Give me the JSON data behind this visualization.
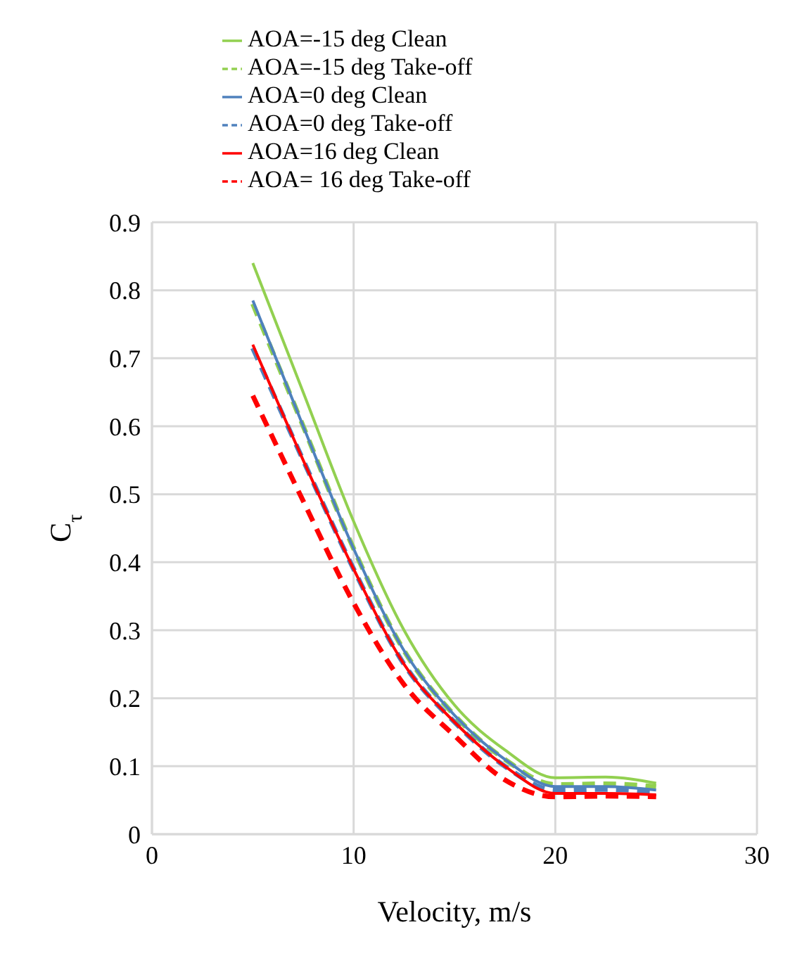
{
  "chart_data": {
    "type": "line",
    "xlabel": "Velocity, m/s",
    "ylabel": "C$_{τ}$",
    "x": [
      5,
      7.5,
      10,
      12.5,
      15,
      17.5,
      20,
      22.5,
      25
    ],
    "series": [
      {
        "name": "AOA=-15 deg Clean",
        "color": "#92d050",
        "line_style": "solid",
        "values": [
          0.84,
          0.65,
          0.46,
          0.3,
          0.19,
          0.124,
          0.083,
          0.084,
          0.075
        ]
      },
      {
        "name": "AOA=-15 deg Take-off",
        "color": "#92d050",
        "line_style": "dashed",
        "values": [
          0.78,
          0.6,
          0.42,
          0.27,
          0.175,
          0.11,
          0.073,
          0.074,
          0.07
        ]
      },
      {
        "name": "AOA=0 deg Clean",
        "color": "#4f81bd",
        "line_style": "solid",
        "values": [
          0.785,
          0.6,
          0.42,
          0.27,
          0.175,
          0.11,
          0.07,
          0.07,
          0.065
        ]
      },
      {
        "name": "AOA=0 deg Take-off",
        "color": "#4f81bd",
        "line_style": "dashed",
        "values": [
          0.715,
          0.55,
          0.39,
          0.25,
          0.165,
          0.1,
          0.065,
          0.066,
          0.062
        ]
      },
      {
        "name": "AOA=16 deg Clean",
        "color": "#ff0000",
        "line_style": "solid",
        "values": [
          0.72,
          0.55,
          0.39,
          0.25,
          0.165,
          0.1,
          0.06,
          0.06,
          0.058
        ]
      },
      {
        "name": "AOA= 16 deg Take-off",
        "color": "#ff0000",
        "line_style": "dashed",
        "values": [
          0.645,
          0.49,
          0.34,
          0.22,
          0.145,
          0.08,
          0.055,
          0.056,
          0.055
        ]
      }
    ],
    "xlim": [
      0,
      30
    ],
    "xticks": [
      0,
      10,
      20,
      30
    ],
    "ylim": [
      0,
      0.9
    ],
    "yticks": [
      0,
      0.1,
      0.2,
      0.3,
      0.4,
      0.5,
      0.6,
      0.7,
      0.8,
      0.9
    ],
    "grid": true,
    "legend": "top",
    "marker": "none"
  }
}
